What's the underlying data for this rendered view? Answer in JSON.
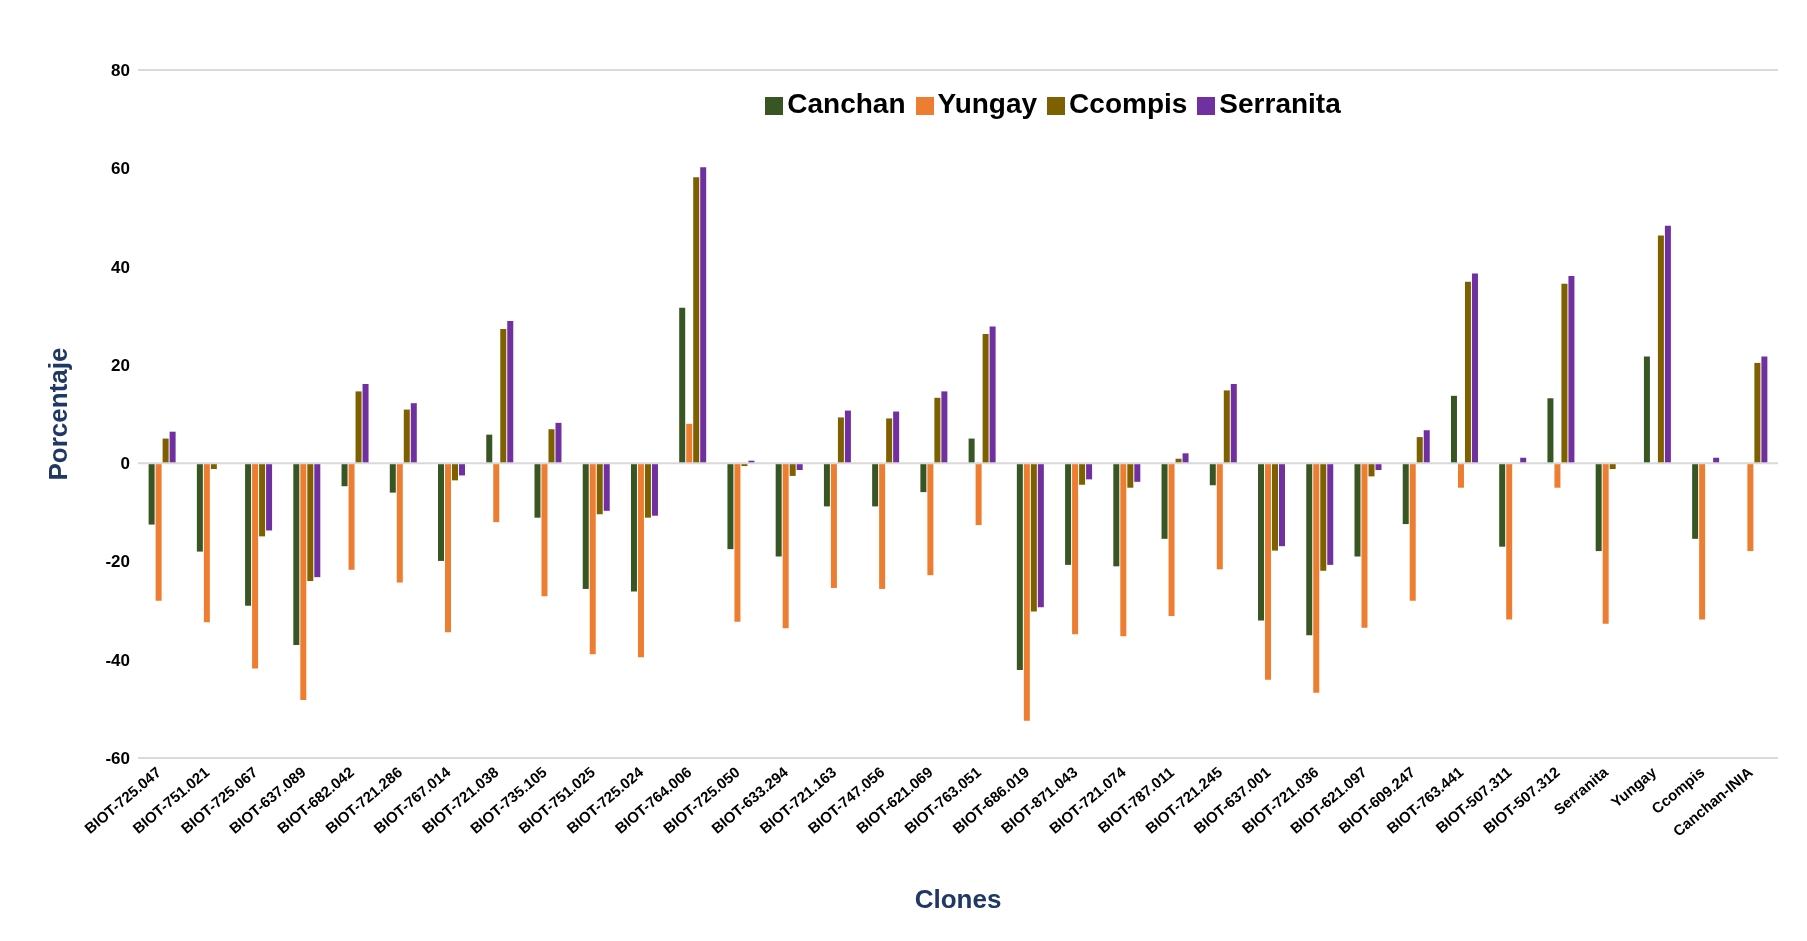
{
  "chart_data": {
    "type": "bar",
    "xlabel": "Clones",
    "ylabel": "Porcentaje",
    "categories": [
      "BIOT-725.047",
      "BIOT-751.021",
      "BIOT-725.067",
      "BIOT-637.089",
      "BIOT-682.042",
      "BIOT-721.286",
      "BIOT-767.014",
      "BIOT-721.038",
      "BIOT-735.105",
      "BIOT-751.025",
      "BIOT-725.024",
      "BIOT-764.006",
      "BIOT-725.050",
      "BIOT-633.294",
      "BIOT-721.163",
      "BIOT-747.056",
      "BIOT-621.069",
      "BIOT-763.051",
      "BIOT-686.019",
      "BIOT-871.043",
      "BIOT-721.074",
      "BIOT-787.011",
      "BIOT-721.245",
      "BIOT-637.001",
      "BIOT-721.036",
      "BIOT-621.097",
      "BIOT-609.247",
      "BIOT-763.441",
      "BIOT-507.311",
      "BIOT-507.312",
      "Serranita",
      "Yungay",
      "Ccompis",
      "Canchan-INIA"
    ],
    "series": [
      {
        "name": "Canchan",
        "color": "#375623",
        "values": [
          -12.5,
          -18,
          -29,
          -37,
          -4.7,
          -6,
          -19.9,
          5.8,
          -11.1,
          -25.6,
          -26.1,
          31.6,
          -17.5,
          -19,
          -8.8,
          -8.8,
          -5.9,
          5,
          -42.1,
          -20.7,
          -21,
          -15.4,
          -4.5,
          -32,
          -35,
          -19,
          -12.4,
          13.7,
          -17,
          13.2,
          -17.9,
          21.7,
          -15.4,
          null
        ]
      },
      {
        "name": "Yungay",
        "color": "#ed7d31",
        "values": [
          -28,
          -32.4,
          -41.8,
          -48.2,
          -21.7,
          -24.3,
          -34.4,
          -12,
          -27.1,
          -38.9,
          -39.5,
          8,
          -32.3,
          -33.6,
          -25.4,
          -25.6,
          -22.8,
          -12.6,
          -52.4,
          -34.8,
          -35.2,
          -31.1,
          -21.6,
          -44.1,
          -46.7,
          -33.5,
          -28,
          -5,
          -31.8,
          -5,
          -32.7,
          null,
          -31.8,
          -17.9
        ]
      },
      {
        "name": "Ccompis",
        "color": "#7f6000",
        "values": [
          5,
          -1.2,
          -14.9,
          -24,
          14.6,
          10.9,
          -3.5,
          27.3,
          6.9,
          -10.4,
          -11.1,
          58.2,
          -0.6,
          -2.6,
          9.3,
          9.1,
          13.3,
          26.3,
          -30.2,
          -4.4,
          -5,
          0.9,
          14.8,
          -17.8,
          -21.9,
          -2.7,
          5.3,
          36.9,
          0,
          36.5,
          -1.2,
          46.3,
          null,
          20.4
        ]
      },
      {
        "name": "Serranita",
        "color": "#7030a0",
        "values": [
          6.4,
          0,
          -13.7,
          -23.2,
          16.1,
          12.2,
          -2.5,
          28.9,
          8.2,
          -9.7,
          -10.7,
          60.2,
          0.5,
          -1.4,
          10.7,
          10.5,
          14.6,
          27.8,
          -29.3,
          -3.3,
          -3.8,
          2,
          16.1,
          -16.9,
          -20.7,
          -1.4,
          6.7,
          38.6,
          1.1,
          38.1,
          null,
          48.3,
          1.1,
          21.7
        ]
      }
    ],
    "ylim": [
      -60,
      80
    ],
    "yticks": [
      -60,
      -40,
      -20,
      0,
      20,
      40,
      60,
      80
    ],
    "grid": "y",
    "legend": "top"
  }
}
